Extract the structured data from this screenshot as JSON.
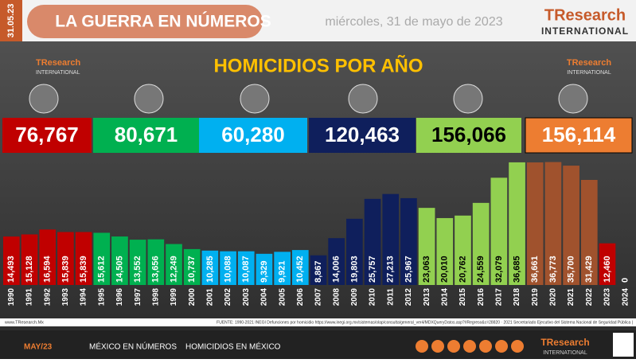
{
  "header": {
    "date_tag": "31.05.23",
    "banner": "LA GUERRA EN NÚMEROS",
    "date": "miércoles, 31 de mayo de 2023",
    "brand": "TResearch",
    "brand_sub": "INTERNATIONAL"
  },
  "chart_data": {
    "type": "bar",
    "title": "HOMICIDIOS POR AÑO",
    "categories": [
      "1990",
      "1991",
      "1992",
      "1993",
      "1994",
      "1995",
      "1996",
      "1997",
      "1998",
      "1999",
      "2000",
      "2001",
      "2002",
      "2003",
      "2004",
      "2005",
      "2006",
      "2007",
      "2008",
      "2009",
      "2010",
      "2011",
      "2012",
      "2013",
      "2014",
      "2015",
      "2016",
      "2017",
      "2018",
      "2019",
      "2020",
      "2021",
      "2022",
      "2023",
      "2024"
    ],
    "values": [
      14493,
      15128,
      16594,
      15839,
      15839,
      15612,
      14505,
      13552,
      13656,
      12249,
      10737,
      10285,
      10088,
      10087,
      9329,
      9921,
      10452,
      8867,
      14006,
      19803,
      25757,
      27213,
      25967,
      23063,
      20010,
      20762,
      24559,
      32079,
      36685,
      36661,
      36773,
      35700,
      31429,
      12460,
      0
    ],
    "value_labels": [
      "14,493",
      "15,128",
      "16,594",
      "15,839",
      "15,839",
      "15,612",
      "14,505",
      "13,552",
      "13,656",
      "12,249",
      "10,737",
      "10,285",
      "10,088",
      "10,087",
      "9,329",
      "9,921",
      "10,452",
      "8,867",
      "14,006",
      "19,803",
      "25,757",
      "27,213",
      "25,967",
      "23,063",
      "20,010",
      "20,762",
      "24,559",
      "32,079",
      "36,685",
      "36,661",
      "36,773",
      "35,700",
      "31,429",
      "12,460",
      "0"
    ],
    "bar_colors": [
      "#c00000",
      "#c00000",
      "#c00000",
      "#c00000",
      "#c00000",
      "#00b050",
      "#00b050",
      "#00b050",
      "#00b050",
      "#00b050",
      "#00b050",
      "#00b0f0",
      "#00b0f0",
      "#00b0f0",
      "#00b0f0",
      "#00b0f0",
      "#00b0f0",
      "#0f1f5c",
      "#0f1f5c",
      "#0f1f5c",
      "#0f1f5c",
      "#0f1f5c",
      "#0f1f5c",
      "#92d050",
      "#92d050",
      "#92d050",
      "#92d050",
      "#92d050",
      "#92d050",
      "#a0522d",
      "#a0522d",
      "#a0522d",
      "#a0522d",
      "#c00000",
      "#a0522d"
    ],
    "ylim": [
      0,
      40000
    ],
    "period_totals": [
      {
        "value": 76767,
        "label": "76,767",
        "color": "#c00000"
      },
      {
        "value": 80671,
        "label": "80,671",
        "color": "#00b050"
      },
      {
        "value": 60280,
        "label": "60,280",
        "color": "#00b0f0"
      },
      {
        "value": 120463,
        "label": "120,463",
        "color": "#0f1f5c"
      },
      {
        "value": 156066,
        "label": "156,066",
        "color": "#92d050"
      },
      {
        "value": 156114,
        "label": "156,114",
        "color": "#ed7d31"
      }
    ]
  },
  "source": "FUENTE: 1990-2021 INEGI Defunciones por homicidio https://www.inegi.org.mx/sistemas/olap/consulta/general_ver4/MDXQueryDatos.asp?#Regreso&c=28820 · 2021 Secretariado Ejecutivo del Sistema Nacional de Seguridad Pública |",
  "site": "www.TResearch.Mx",
  "footer": {
    "month": "MAY/23",
    "link1": "MÉXICO EN NÚMEROS",
    "link2": "HOMICIDIOS EN MÉXICO"
  }
}
